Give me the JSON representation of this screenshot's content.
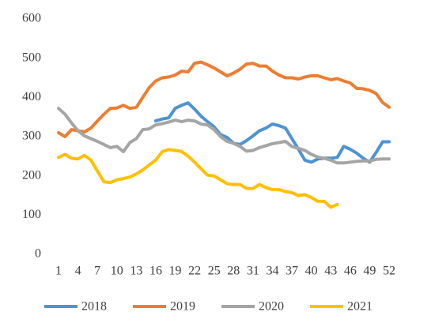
{
  "chart_data": {
    "type": "line",
    "x": [
      1,
      2,
      3,
      4,
      5,
      6,
      7,
      8,
      9,
      10,
      11,
      12,
      13,
      14,
      15,
      16,
      17,
      18,
      19,
      20,
      21,
      22,
      23,
      24,
      25,
      26,
      27,
      28,
      29,
      30,
      31,
      32,
      33,
      34,
      35,
      36,
      37,
      38,
      39,
      40,
      41,
      42,
      43,
      44,
      45,
      46,
      47,
      48,
      49,
      50,
      51,
      52
    ],
    "xlim": [
      1,
      52
    ],
    "xticks": [
      1,
      4,
      7,
      10,
      13,
      16,
      19,
      22,
      25,
      28,
      31,
      34,
      37,
      40,
      43,
      46,
      49,
      52
    ],
    "ylim": [
      0,
      600
    ],
    "yticks": [
      0,
      100,
      200,
      300,
      400,
      500,
      600
    ],
    "grid": false,
    "legend": "bottom",
    "series": [
      {
        "name": "2018",
        "color": "#4f93d2",
        "values": [
          null,
          null,
          null,
          null,
          null,
          null,
          null,
          null,
          null,
          null,
          null,
          null,
          null,
          null,
          null,
          340,
          345,
          348,
          372,
          380,
          386,
          370,
          352,
          338,
          325,
          305,
          298,
          283,
          280,
          290,
          302,
          315,
          322,
          332,
          328,
          322,
          295,
          268,
          240,
          235,
          243,
          245,
          245,
          247,
          275,
          268,
          258,
          245,
          235,
          260,
          287,
          287
        ]
      },
      {
        "name": "2019",
        "color": "#ed7d31",
        "values": [
          310,
          300,
          318,
          315,
          312,
          322,
          340,
          357,
          372,
          373,
          380,
          372,
          375,
          400,
          425,
          442,
          450,
          452,
          457,
          467,
          465,
          487,
          490,
          483,
          475,
          465,
          455,
          462,
          472,
          485,
          487,
          480,
          480,
          467,
          457,
          450,
          450,
          447,
          452,
          455,
          455,
          450,
          445,
          448,
          442,
          437,
          423,
          422,
          418,
          410,
          387,
          375
        ]
      },
      {
        "name": "2020",
        "color": "#a5a5a5",
        "values": [
          372,
          357,
          335,
          315,
          302,
          295,
          288,
          280,
          272,
          275,
          262,
          285,
          295,
          318,
          320,
          330,
          333,
          337,
          342,
          338,
          342,
          340,
          332,
          330,
          318,
          300,
          288,
          283,
          275,
          263,
          265,
          272,
          277,
          282,
          285,
          288,
          275,
          270,
          265,
          255,
          248,
          245,
          240,
          233,
          233,
          235,
          237,
          238,
          238,
          242,
          243,
          243
        ]
      },
      {
        "name": "2021",
        "color": "#ffc000",
        "values": [
          247,
          255,
          245,
          243,
          252,
          240,
          212,
          185,
          183,
          190,
          193,
          197,
          205,
          215,
          228,
          240,
          262,
          267,
          265,
          262,
          250,
          235,
          218,
          202,
          200,
          190,
          180,
          178,
          178,
          168,
          168,
          178,
          170,
          165,
          165,
          160,
          157,
          150,
          152,
          145,
          135,
          135,
          120,
          127,
          null,
          null,
          null,
          null,
          null,
          null,
          null,
          null
        ]
      }
    ]
  }
}
